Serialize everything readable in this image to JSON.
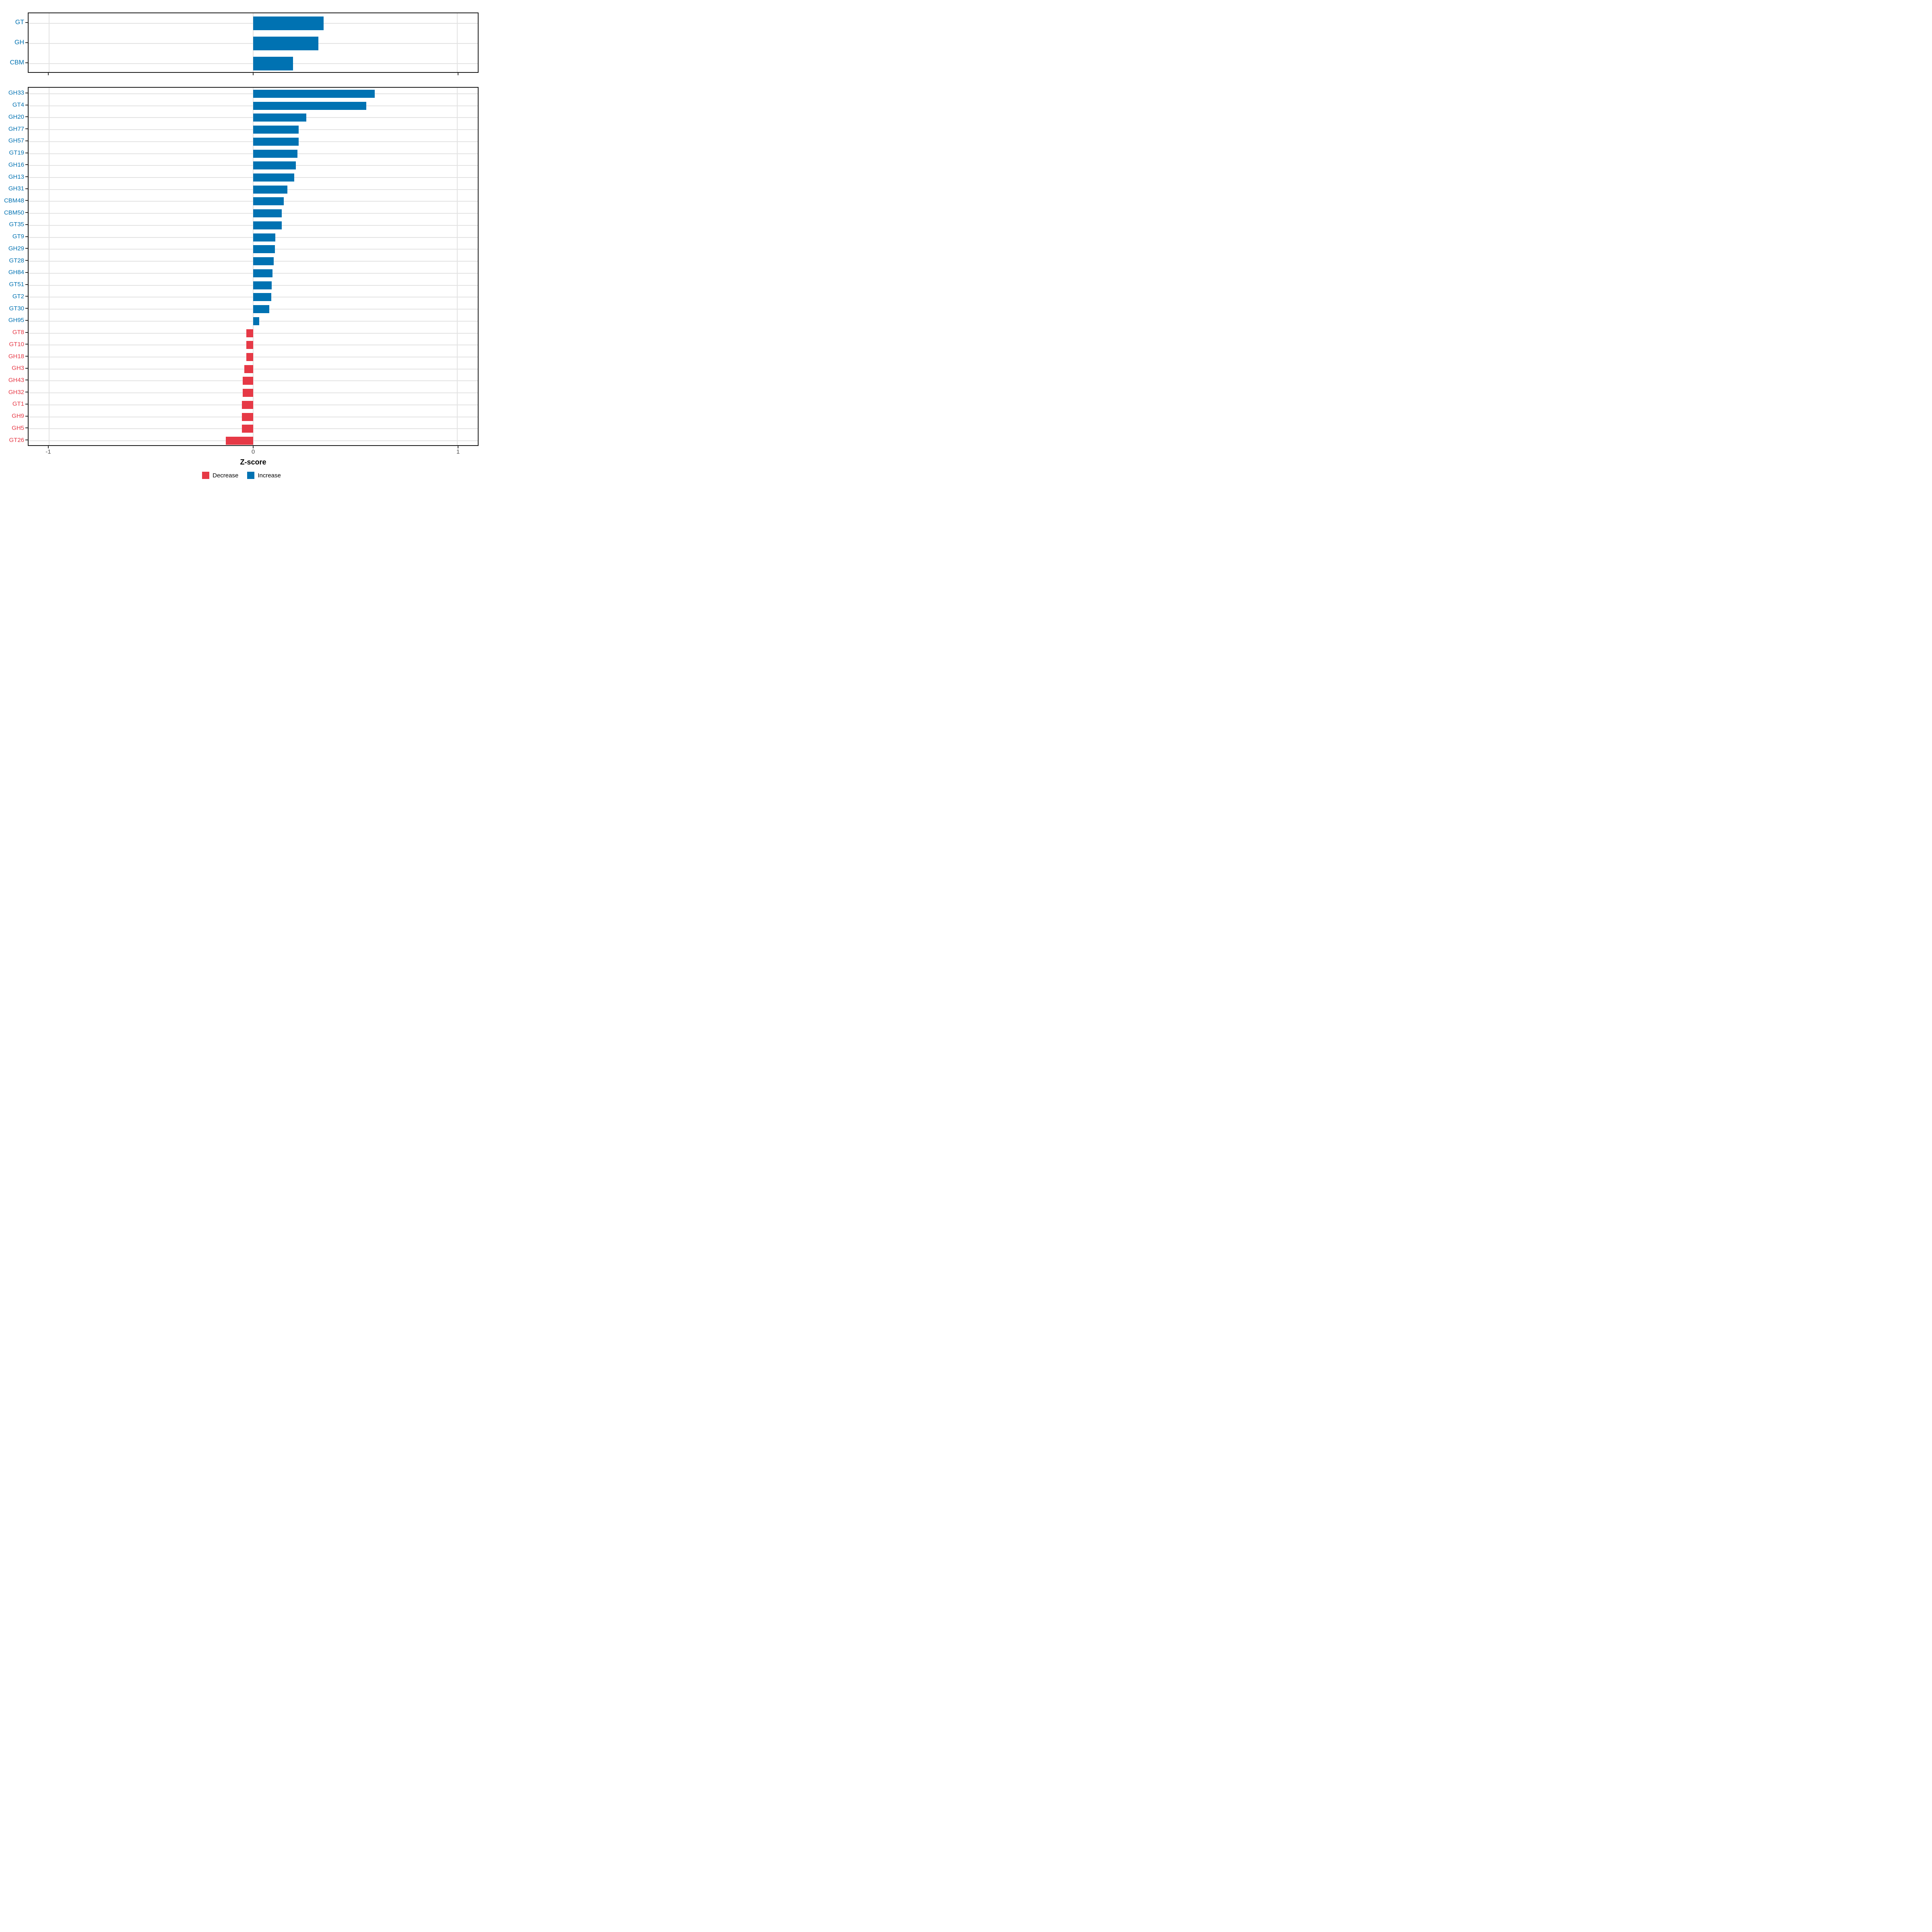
{
  "chart_data": {
    "type": "bar",
    "orientation": "horizontal",
    "xlabel": "Z-score",
    "xlim": [
      -1.1,
      1.1
    ],
    "x_ticks": [
      {
        "value": -1,
        "label": "-1"
      },
      {
        "value": 0,
        "label": "0"
      },
      {
        "value": 1,
        "label": "1"
      }
    ],
    "grid": true,
    "colors": {
      "increase": "#0072B2",
      "decrease": "#E63946"
    },
    "legend": [
      {
        "label": "Decrease",
        "direction": "decrease",
        "color": "#E63946"
      },
      {
        "label": "Increase",
        "direction": "increase",
        "color": "#0072B2"
      }
    ],
    "panels": [
      {
        "name": "enzyme-classes",
        "categories": [
          "GT",
          "GH",
          "CBM"
        ],
        "values": [
          0.344,
          0.319,
          0.196
        ],
        "directions": [
          "increase",
          "increase",
          "increase"
        ]
      },
      {
        "name": "enzyme-families",
        "categories": [
          "GH33",
          "GT4",
          "GH20",
          "GH77",
          "GH57",
          "GT19",
          "GH16",
          "GH13",
          "GH31",
          "CBM48",
          "CBM50",
          "GT35",
          "GT9",
          "GH29",
          "GT28",
          "GH84",
          "GT51",
          "GT2",
          "GT30",
          "GH95",
          "GT8",
          "GT10",
          "GH18",
          "GH3",
          "GH43",
          "GH32",
          "GT1",
          "GH9",
          "GH5",
          "GT26"
        ],
        "values": [
          0.595,
          0.553,
          0.261,
          0.223,
          0.222,
          0.216,
          0.209,
          0.201,
          0.168,
          0.15,
          0.14,
          0.14,
          0.108,
          0.107,
          0.1,
          0.095,
          0.09,
          0.089,
          0.079,
          0.029,
          -0.033,
          -0.033,
          -0.033,
          -0.044,
          -0.051,
          -0.051,
          -0.056,
          -0.056,
          -0.056,
          -0.135
        ],
        "directions": [
          "increase",
          "increase",
          "increase",
          "increase",
          "increase",
          "increase",
          "increase",
          "increase",
          "increase",
          "increase",
          "increase",
          "increase",
          "increase",
          "increase",
          "increase",
          "increase",
          "increase",
          "increase",
          "increase",
          "increase",
          "decrease",
          "decrease",
          "decrease",
          "decrease",
          "decrease",
          "decrease",
          "decrease",
          "decrease",
          "decrease",
          "decrease"
        ]
      }
    ]
  }
}
